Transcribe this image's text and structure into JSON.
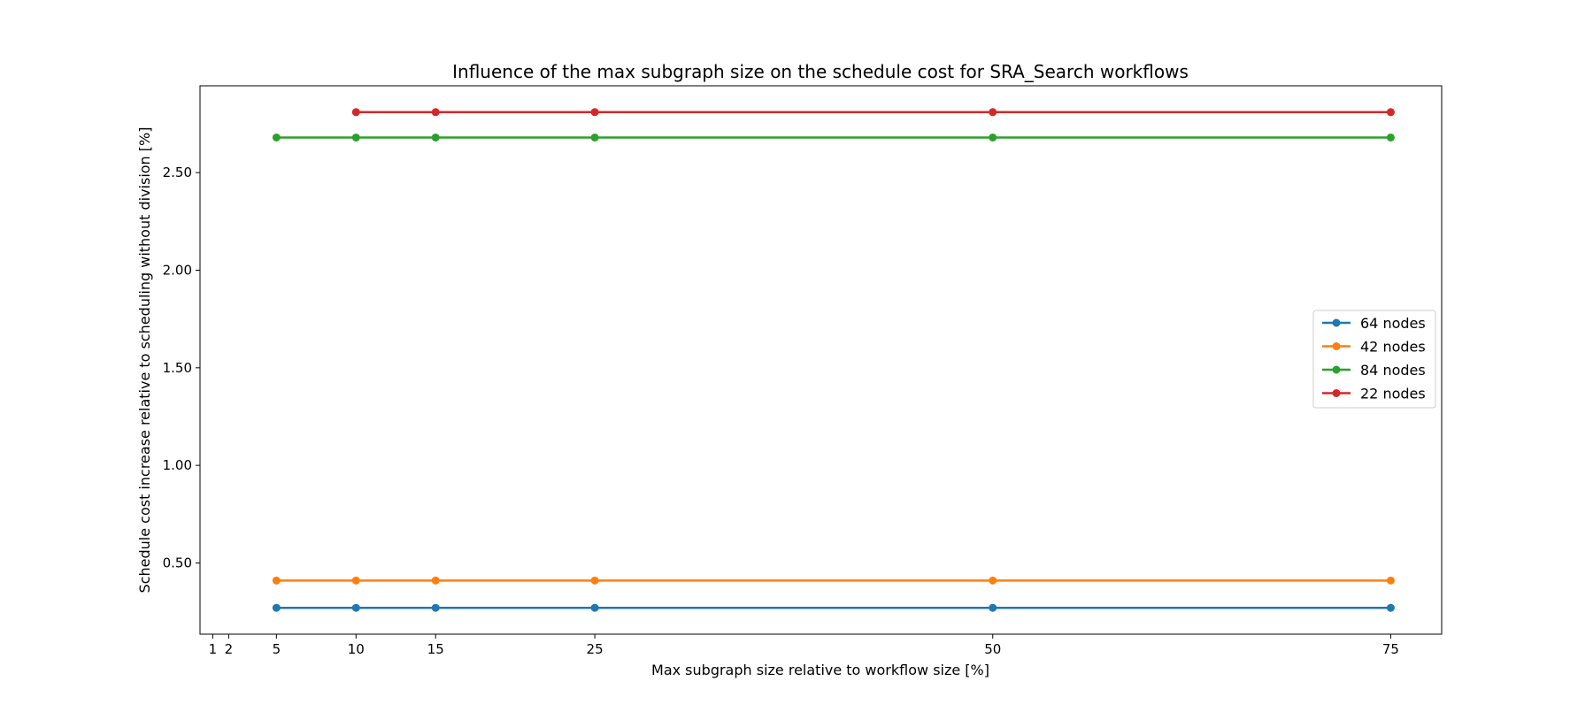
{
  "chart_data": {
    "type": "line",
    "title": "Influence of the max subgraph size on the schedule cost for SRA_Search workflows",
    "xlabel": "Max subgraph size relative to workflow size [%]",
    "ylabel": "Schedule cost increase relative to scheduling without division [%]",
    "xlim": [
      0.2,
      78.2
    ],
    "ylim": [
      0.135,
      2.945
    ],
    "xticks": [
      1,
      2,
      5,
      10,
      15,
      25,
      50,
      75
    ],
    "xtick_labels": [
      "1",
      "2",
      "5",
      "10",
      "15",
      "25",
      "50",
      "75"
    ],
    "yticks": [
      0.5,
      1.0,
      1.5,
      2.0,
      2.5
    ],
    "ytick_labels": [
      "0.50",
      "1.00",
      "1.50",
      "2.00",
      "2.50"
    ],
    "grid": false,
    "legend_position": "right",
    "series": [
      {
        "name": "64 nodes",
        "color": "#1f77b4",
        "x": [
          5,
          10,
          15,
          25,
          50,
          75
        ],
        "y": [
          0.27,
          0.27,
          0.27,
          0.27,
          0.27,
          0.27
        ]
      },
      {
        "name": "42 nodes",
        "color": "#ff7f0e",
        "x": [
          5,
          10,
          15,
          25,
          50,
          75
        ],
        "y": [
          0.41,
          0.41,
          0.41,
          0.41,
          0.41,
          0.41
        ]
      },
      {
        "name": "84 nodes",
        "color": "#2ca02c",
        "x": [
          5,
          10,
          15,
          25,
          50,
          75
        ],
        "y": [
          2.68,
          2.68,
          2.68,
          2.68,
          2.68,
          2.68
        ]
      },
      {
        "name": "22 nodes",
        "color": "#d62728",
        "x": [
          10,
          15,
          25,
          50,
          75
        ],
        "y": [
          2.81,
          2.81,
          2.81,
          2.81,
          2.81
        ]
      }
    ]
  }
}
